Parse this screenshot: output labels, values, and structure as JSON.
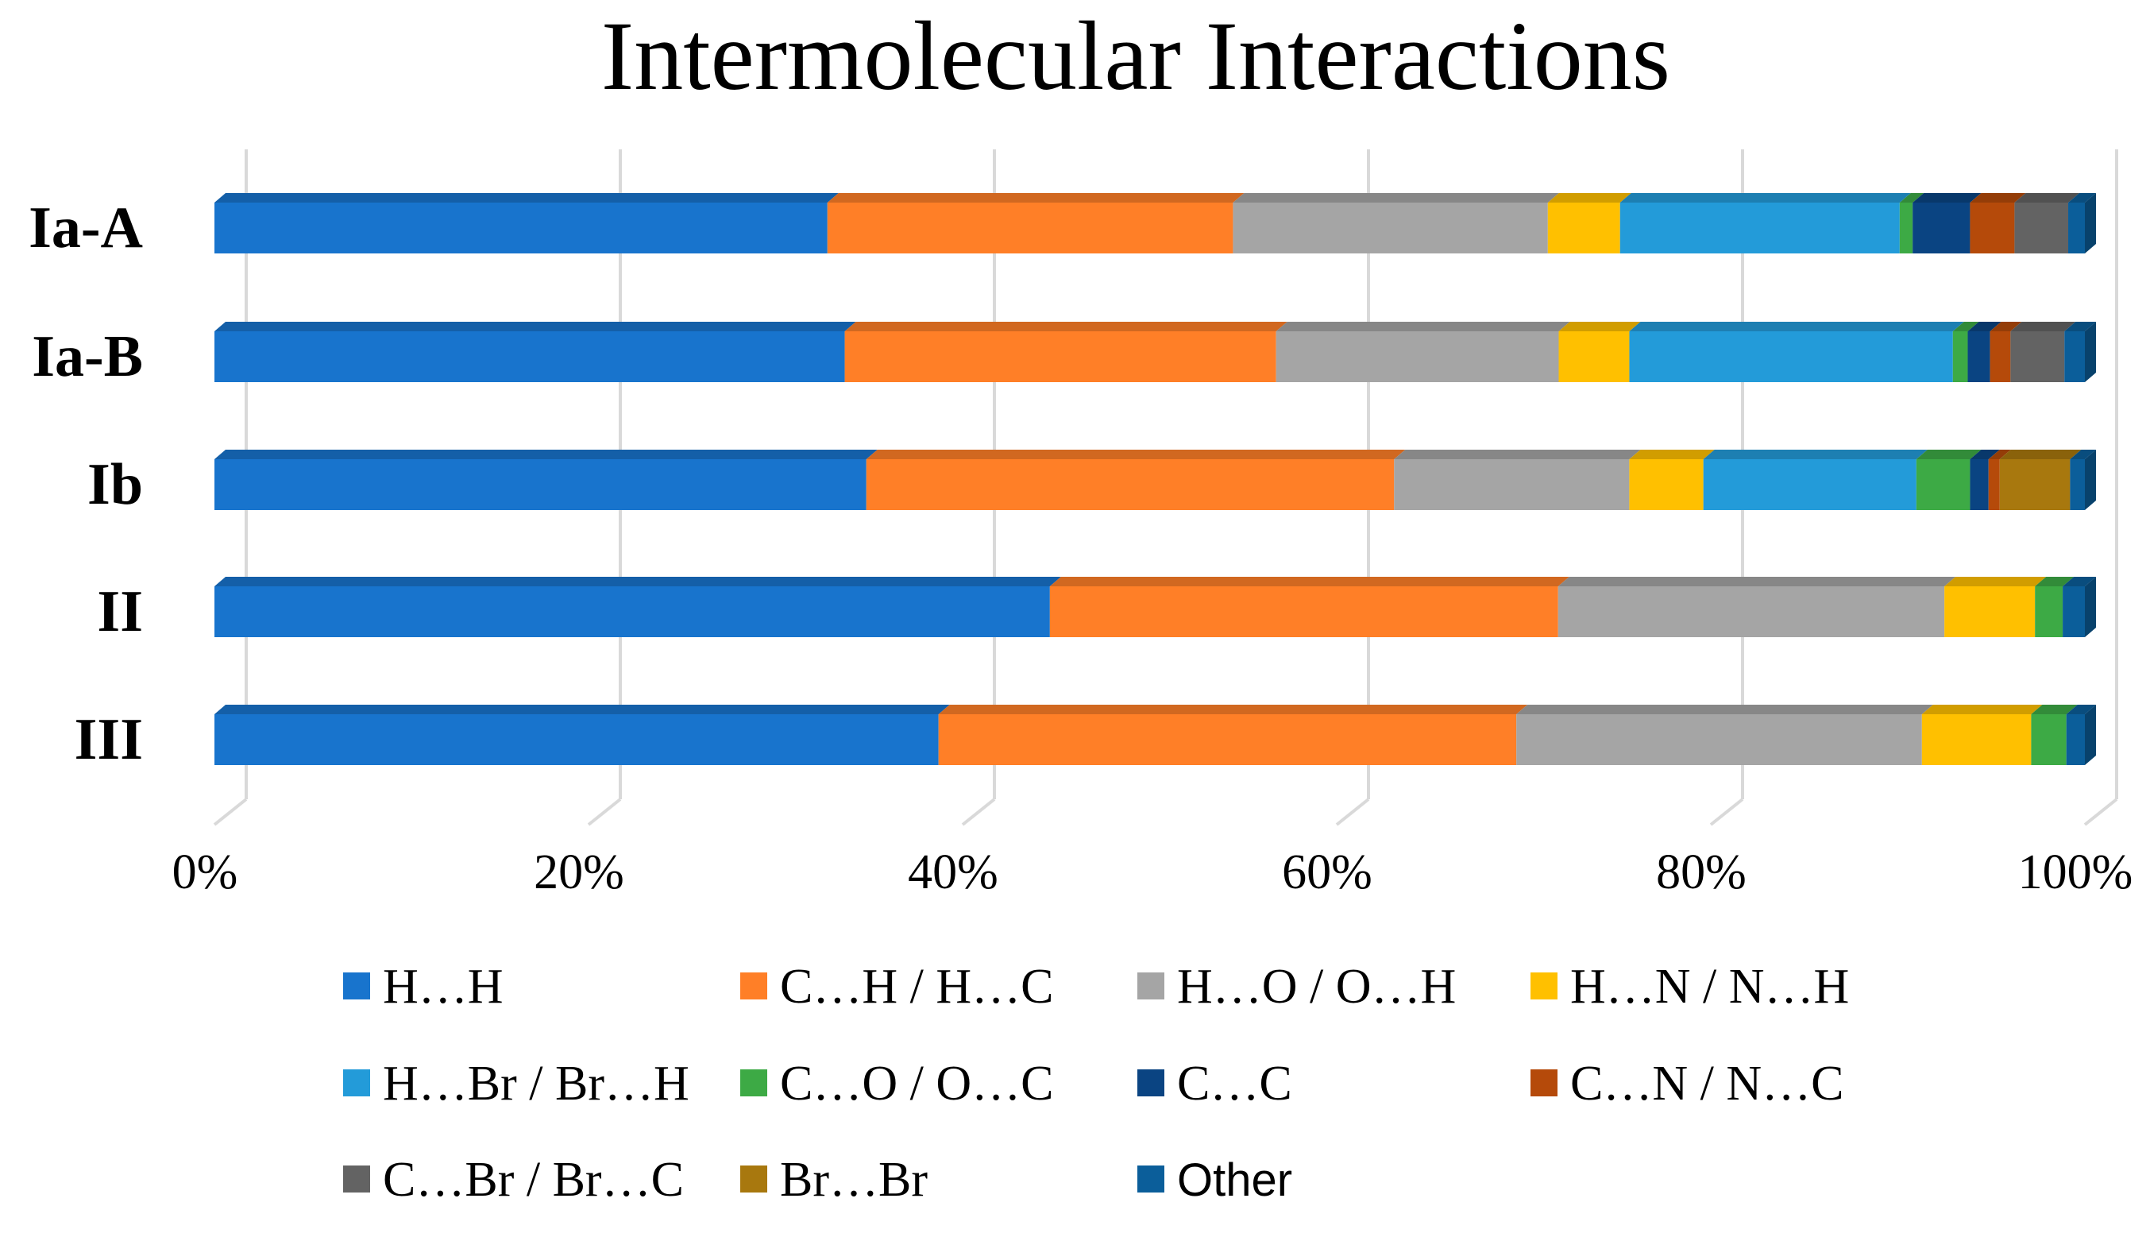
{
  "chart_data": {
    "type": "bar",
    "orientation": "horizontal",
    "stacked": "percent",
    "title": "Intermolecular Interactions",
    "xlabel": "",
    "ylabel": "",
    "xlim": [
      0,
      100
    ],
    "x_ticks": [
      "0%",
      "20%",
      "40%",
      "60%",
      "80%",
      "100%"
    ],
    "grid": true,
    "legend_position": "bottom",
    "categories": [
      "Ia-A",
      "Ia-B",
      "Ib",
      "II",
      "III"
    ],
    "series": [
      {
        "name": "H…H",
        "color": "#1874CD",
        "values": [
          33.1,
          33.9,
          35.2,
          45.2,
          39.1
        ]
      },
      {
        "name": "C…H / H…C",
        "color": "#FF7F27",
        "values": [
          21.9,
          23.2,
          28.5,
          27.5,
          31.2
        ]
      },
      {
        "name": "H…O / O…H",
        "color": "#A5A5A5",
        "values": [
          17.0,
          15.2,
          12.7,
          20.9,
          21.9
        ]
      },
      {
        "name": "H…N / N…H",
        "color": "#FFC000",
        "values": [
          3.9,
          3.8,
          4.0,
          4.9,
          5.9
        ]
      },
      {
        "name": "H…Br / Br…H",
        "color": "#239BD9",
        "values": [
          15.1,
          17.4,
          11.5,
          0,
          0
        ]
      },
      {
        "name": "C…O / O…C",
        "color": "#3DAA45",
        "values": [
          0.7,
          0.8,
          2.9,
          1.5,
          1.9
        ]
      },
      {
        "name": "C…C",
        "color": "#0A4482",
        "values": [
          3.1,
          1.2,
          1.0,
          0,
          0
        ]
      },
      {
        "name": "C…N / N…C",
        "color": "#B54A0A",
        "values": [
          2.4,
          1.1,
          0.6,
          0,
          0
        ]
      },
      {
        "name": "C…Br / Br…C",
        "color": "#636363",
        "values": [
          2.9,
          2.9,
          0,
          0,
          0
        ]
      },
      {
        "name": "Br…Br",
        "color": "#A8780E",
        "values": [
          0,
          0,
          3.8,
          0,
          0
        ]
      },
      {
        "name": "Other",
        "color": "#0B5E9A",
        "values": [
          0.9,
          1.1,
          0.8,
          1.2,
          1.0
        ]
      }
    ]
  }
}
